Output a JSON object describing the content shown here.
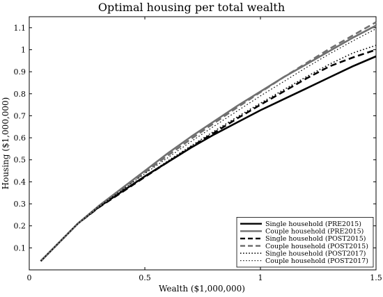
{
  "chart_data": {
    "type": "line",
    "title": "Optimal housing per total wealth",
    "xlabel": "Wealth ($1,000,000)",
    "ylabel": "Housing ($1,000,000)",
    "xlim": [
      0,
      1.5
    ],
    "ylim": [
      0,
      1.15
    ],
    "x_ticks": [
      0,
      0.5,
      1,
      1.5
    ],
    "x_tick_labels": [
      "0",
      "0.5",
      "1",
      "1.5"
    ],
    "y_ticks": [
      0.1,
      0.2,
      0.3,
      0.4,
      0.5,
      0.6,
      0.7,
      0.8,
      0.9,
      1.0,
      1.1
    ],
    "y_tick_labels": [
      "0.1",
      "0.2",
      "0.3",
      "0.4",
      "0.5",
      "0.6",
      "0.7",
      "0.8",
      "0.9",
      "1",
      "1.1"
    ],
    "grid": false,
    "legend_position": "bottom-right",
    "series": [
      {
        "name": "Single household (PRE2015)",
        "style": "solid",
        "color": "#000000",
        "width": 2.6,
        "x": [
          0.05,
          0.21,
          0.3,
          0.4,
          0.5,
          0.6,
          0.7,
          0.8,
          0.9,
          1.0,
          1.1,
          1.2,
          1.3,
          1.4,
          1.5
        ],
        "y": [
          0.04,
          0.21,
          0.285,
          0.355,
          0.425,
          0.49,
          0.555,
          0.615,
          0.67,
          0.725,
          0.775,
          0.825,
          0.875,
          0.925,
          0.97
        ]
      },
      {
        "name": "Couple household (PRE2015)",
        "style": "solid",
        "color": "#707070",
        "width": 2.6,
        "x": [
          0.05,
          0.21,
          0.3,
          0.4,
          0.5,
          0.6,
          0.7,
          0.8,
          0.9,
          1.0,
          1.1,
          1.2,
          1.3,
          1.4,
          1.5
        ],
        "y": [
          0.04,
          0.21,
          0.29,
          0.37,
          0.45,
          0.53,
          0.605,
          0.675,
          0.745,
          0.81,
          0.875,
          0.935,
          0.995,
          1.055,
          1.11
        ]
      },
      {
        "name": "Single household (POST2015)",
        "style": "dashed",
        "color": "#000000",
        "width": 2.6,
        "x": [
          0.05,
          0.21,
          0.3,
          0.4,
          0.5,
          0.6,
          0.7,
          0.8,
          0.9,
          1.0,
          1.1,
          1.2,
          1.3,
          1.4,
          1.5
        ],
        "y": [
          0.04,
          0.21,
          0.283,
          0.352,
          0.422,
          0.49,
          0.558,
          0.623,
          0.688,
          0.75,
          0.81,
          0.87,
          0.925,
          0.965,
          1.0
        ]
      },
      {
        "name": "Couple household (POST2015)",
        "style": "dashed",
        "color": "#707070",
        "width": 2.6,
        "x": [
          0.05,
          0.21,
          0.3,
          0.4,
          0.5,
          0.6,
          0.7,
          0.8,
          0.9,
          1.0,
          1.1,
          1.2,
          1.3,
          1.4,
          1.5
        ],
        "y": [
          0.04,
          0.21,
          0.288,
          0.365,
          0.443,
          0.52,
          0.595,
          0.667,
          0.738,
          0.807,
          0.875,
          0.94,
          1.005,
          1.065,
          1.125
        ]
      },
      {
        "name": "Single household (POST2017)",
        "style": "dotted",
        "color": "#000000",
        "width": 1.6,
        "x": [
          0.05,
          0.21,
          0.3,
          0.4,
          0.5,
          0.6,
          0.7,
          0.8,
          0.9,
          1.0,
          1.1,
          1.2,
          1.3,
          1.4,
          1.5
        ],
        "y": [
          0.04,
          0.21,
          0.285,
          0.355,
          0.425,
          0.495,
          0.563,
          0.63,
          0.695,
          0.757,
          0.818,
          0.878,
          0.935,
          0.985,
          1.02
        ]
      },
      {
        "name": "Couple household (POST2017)",
        "style": "dotted",
        "color": "#000000",
        "width": 1.2,
        "x": [
          0.05,
          0.21,
          0.3,
          0.4,
          0.5,
          0.6,
          0.7,
          0.8,
          0.9,
          1.0,
          1.1,
          1.2,
          1.3,
          1.4,
          1.5
        ],
        "y": [
          0.04,
          0.21,
          0.288,
          0.362,
          0.437,
          0.51,
          0.583,
          0.653,
          0.722,
          0.79,
          0.855,
          0.92,
          0.982,
          1.04,
          1.095
        ]
      }
    ]
  }
}
